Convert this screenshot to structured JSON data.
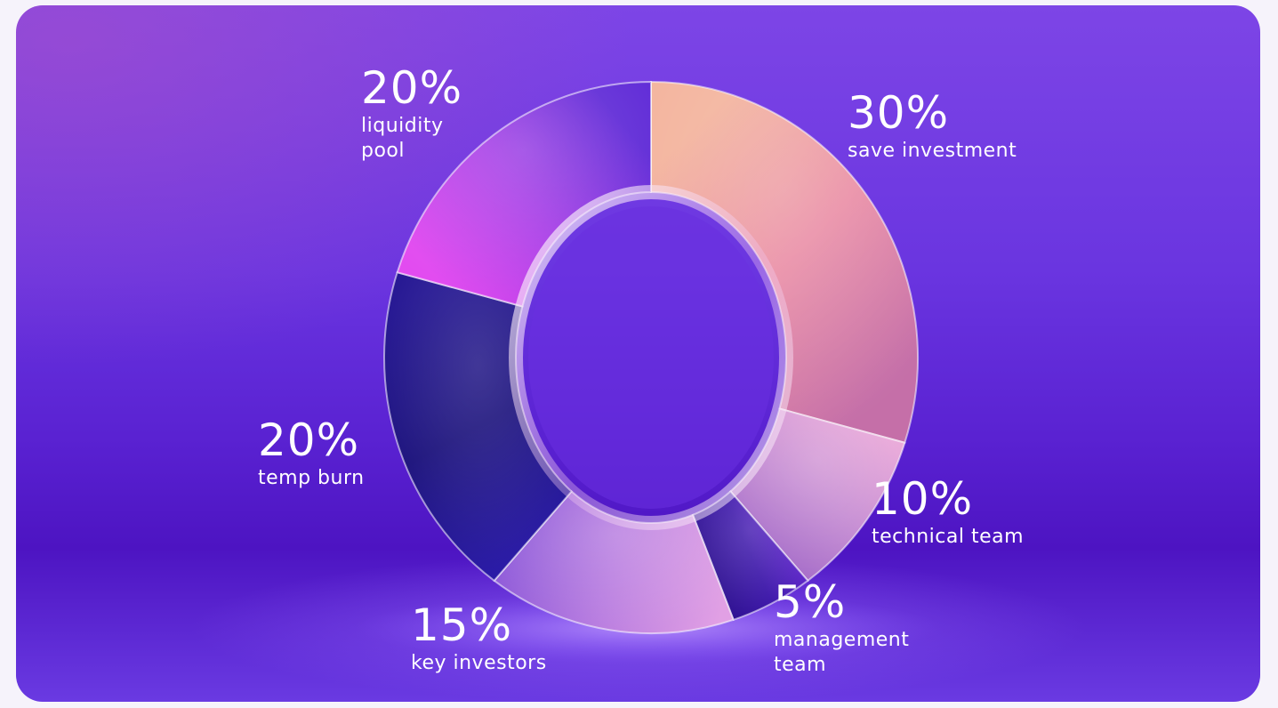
{
  "chart_data": {
    "type": "pie",
    "donut": true,
    "segments": [
      {
        "value": 30,
        "label": "30%",
        "name": "save investment",
        "colors": [
          "#f3b39c",
          "#e98aa3",
          "#c56fa8"
        ]
      },
      {
        "value": 10,
        "label": "10%",
        "name": "technical team",
        "colors": [
          "#e8a6d8",
          "#c58ad2",
          "#a36ac8"
        ]
      },
      {
        "value": 5,
        "label": "5%",
        "name": "management team",
        "colors": [
          "#6a2ad6",
          "#3a14a8",
          "#2a0f8a"
        ]
      },
      {
        "value": 15,
        "label": "15%",
        "name": "key investors",
        "colors": [
          "#e1a0e4",
          "#b87ce0",
          "#8a55d8"
        ]
      },
      {
        "value": 20,
        "label": "20%",
        "name": "temp burn",
        "colors": [
          "#2a1aa8",
          "#140a78",
          "#1c0d8e"
        ]
      },
      {
        "value": 20,
        "label": "20%",
        "name": "liquidity pool",
        "colors": [
          "#e24bf0",
          "#a43ae6",
          "#5d27d6"
        ]
      }
    ]
  }
}
